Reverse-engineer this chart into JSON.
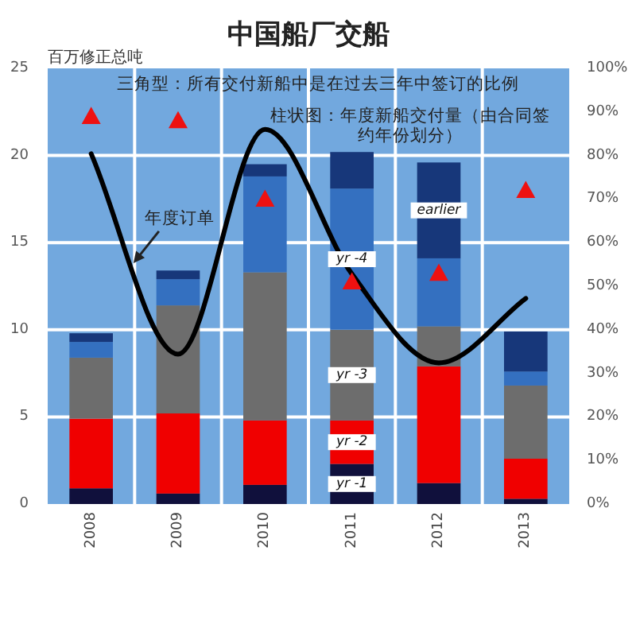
{
  "chart_data": {
    "type": "bar",
    "title": "中国船厂交船",
    "ylabel": "百万修正总吨",
    "stacked": true,
    "categories": [
      "2008",
      "2009",
      "2010",
      "2011",
      "2012",
      "2013"
    ],
    "series": [
      {
        "name": "yr -1",
        "color": "#10103c",
        "values": [
          0.9,
          0.6,
          1.1,
          2.3,
          1.2,
          0.3
        ]
      },
      {
        "name": "yr -2",
        "color": "#f00000",
        "values": [
          4.0,
          4.6,
          3.7,
          2.5,
          6.7,
          2.3
        ]
      },
      {
        "name": "yr -3",
        "color": "#6d6d6d",
        "values": [
          3.5,
          6.2,
          8.5,
          5.2,
          2.3,
          4.2
        ]
      },
      {
        "name": "yr -4",
        "color": "#3470c0",
        "values": [
          0.9,
          1.5,
          5.5,
          8.1,
          3.9,
          0.8
        ]
      },
      {
        "name": "earlier",
        "color": "#17377a",
        "values": [
          0.5,
          0.5,
          0.7,
          2.1,
          5.5,
          2.3
        ]
      },
      {
        "name": "年度订单",
        "type": "line",
        "color": "#000000",
        "values": [
          20.1,
          8.6,
          21.5,
          13.2,
          8.1,
          11.8
        ]
      },
      {
        "type": "scatter",
        "axis": "y2",
        "marker": "triangle",
        "color": "#ee1111",
        "values": [
          89,
          88,
          70,
          51,
          53,
          72
        ]
      }
    ],
    "ylim": [
      0,
      25
    ],
    "yticks": [
      0,
      5,
      10,
      15,
      20,
      25
    ],
    "y2lim": [
      0,
      100
    ],
    "y2ticks": [
      {
        "value": 0,
        "label": "0%"
      },
      {
        "value": 10,
        "label": "10%"
      },
      {
        "value": 20,
        "label": "20%"
      },
      {
        "value": 30,
        "label": "30%"
      },
      {
        "value": 40,
        "label": "40%"
      },
      {
        "value": 50,
        "label": "50%"
      },
      {
        "value": 60,
        "label": "60%"
      },
      {
        "value": 70,
        "label": "70%"
      },
      {
        "value": 80,
        "label": "80%"
      },
      {
        "value": 90,
        "label": "90%"
      },
      {
        "value": 100,
        "label": "100%"
      }
    ],
    "grid": true,
    "annotations": [
      "三角型：所有交付新船中是在过去三年中签订的比例",
      "柱状图：年度新船交付量（由合同签约年份划分）"
    ]
  }
}
